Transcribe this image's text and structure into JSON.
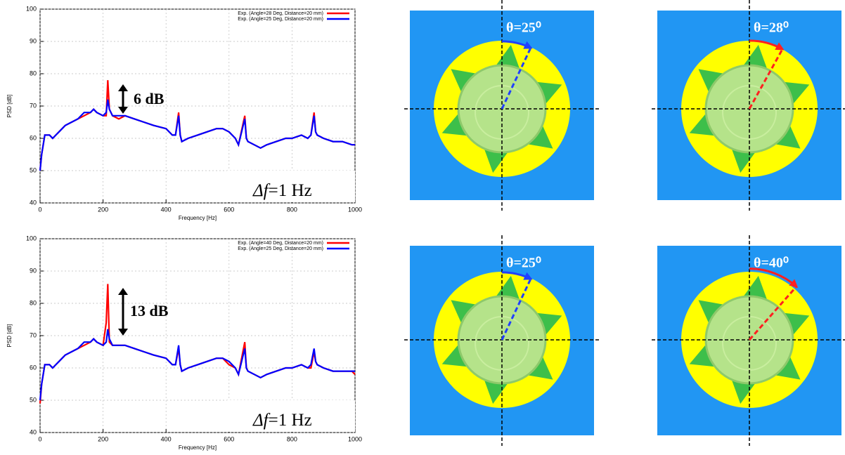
{
  "chart_data": [
    {
      "type": "line",
      "xlabel": "Frequency [Hz]",
      "ylabel": "PSD [dB]",
      "x": [
        0,
        5,
        10,
        15,
        30,
        40,
        50,
        60,
        80,
        100,
        120,
        140,
        160,
        170,
        180,
        200,
        210,
        215,
        220,
        230,
        250,
        270,
        300,
        330,
        360,
        400,
        420,
        430,
        440,
        445,
        450,
        470,
        500,
        530,
        560,
        580,
        600,
        620,
        630,
        650,
        655,
        660,
        680,
        700,
        720,
        750,
        780,
        800,
        830,
        850,
        860,
        870,
        875,
        880,
        900,
        930,
        960,
        990,
        1000
      ],
      "series": [
        {
          "name": "Exp. (Angle=28 Deg, Distance=20 mm)",
          "color": "#ff0000",
          "values": [
            50,
            55,
            58,
            61,
            61,
            60,
            61,
            62,
            64,
            65,
            66,
            67,
            68,
            69,
            68,
            67,
            67,
            78,
            69,
            67,
            66,
            67,
            66,
            65,
            64,
            63,
            61,
            61,
            68,
            61,
            59,
            60,
            61,
            62,
            63,
            63,
            62,
            60,
            58,
            67,
            60,
            59,
            58,
            57,
            58,
            59,
            60,
            60,
            61,
            60,
            61,
            68,
            62,
            61,
            60,
            59,
            59,
            58,
            58
          ]
        },
        {
          "name": "Exp. (Angle=25 Deg, Distance=20 mm)",
          "color": "#0000ff",
          "values": [
            50,
            55,
            58,
            61,
            61,
            60,
            61,
            62,
            64,
            65,
            66,
            68,
            68,
            69,
            68,
            67,
            68,
            72,
            69,
            67,
            67,
            67,
            66,
            65,
            64,
            63,
            61,
            61,
            67,
            61,
            59,
            60,
            61,
            62,
            63,
            63,
            62,
            60,
            58,
            66,
            60,
            59,
            58,
            57,
            58,
            59,
            60,
            60,
            61,
            60,
            61,
            67,
            62,
            61,
            60,
            59,
            59,
            58,
            58
          ]
        }
      ],
      "xlim": [
        0,
        1000
      ],
      "xticks": [
        0,
        200,
        400,
        600,
        800,
        1000
      ],
      "ylim": [
        40,
        100
      ],
      "yticks": [
        40,
        50,
        60,
        70,
        80,
        90,
        100
      ],
      "grid": true,
      "legend": "upper right",
      "annotations": [
        "6 dB",
        "Δf",
        "=1 Hz"
      ]
    },
    {
      "type": "line",
      "xlabel": "Frequency [Hz]",
      "ylabel": "PSD [dB]",
      "x": [
        0,
        5,
        10,
        15,
        30,
        40,
        50,
        60,
        80,
        100,
        120,
        140,
        160,
        170,
        180,
        200,
        210,
        215,
        220,
        230,
        250,
        270,
        300,
        330,
        360,
        400,
        420,
        430,
        440,
        445,
        450,
        470,
        500,
        530,
        560,
        580,
        600,
        620,
        630,
        650,
        655,
        660,
        680,
        700,
        720,
        750,
        780,
        800,
        830,
        850,
        860,
        870,
        875,
        880,
        900,
        930,
        960,
        990,
        1000
      ],
      "series": [
        {
          "name": "Exp. (Angle=40 Deg, Distance=20 mm)",
          "color": "#ff0000",
          "values": [
            49,
            55,
            58,
            61,
            61,
            60,
            61,
            62,
            64,
            65,
            66,
            67,
            68,
            69,
            68,
            67,
            74,
            86,
            68,
            67,
            67,
            67,
            66,
            65,
            64,
            63,
            61,
            61,
            66,
            61,
            59,
            60,
            61,
            62,
            63,
            63,
            61,
            60,
            58,
            68,
            60,
            59,
            58,
            57,
            58,
            59,
            60,
            60,
            61,
            60,
            60,
            65,
            62,
            61,
            60,
            59,
            59,
            59,
            58
          ]
        },
        {
          "name": "Exp. (Angle=25 Deg, Distance=20 mm)",
          "color": "#0000ff",
          "values": [
            50,
            55,
            58,
            61,
            61,
            60,
            61,
            62,
            64,
            65,
            66,
            68,
            68,
            69,
            68,
            67,
            68,
            72,
            69,
            67,
            67,
            67,
            66,
            65,
            64,
            63,
            61,
            61,
            67,
            61,
            59,
            60,
            61,
            62,
            63,
            63,
            62,
            60,
            58,
            66,
            60,
            59,
            58,
            57,
            58,
            59,
            60,
            60,
            61,
            60,
            61,
            66,
            62,
            61,
            60,
            59,
            59,
            59,
            59
          ]
        }
      ],
      "xlim": [
        0,
        1000
      ],
      "xticks": [
        0,
        200,
        400,
        600,
        800,
        1000
      ],
      "ylim": [
        40,
        100
      ],
      "yticks": [
        40,
        50,
        60,
        70,
        80,
        90,
        100
      ],
      "grid": true,
      "legend": "upper right",
      "annotations": [
        "13 dB",
        "Δf",
        "=1 Hz"
      ]
    }
  ],
  "diagrams": [
    {
      "label": "θ=25⁰"
    },
    {
      "label": "θ=28⁰"
    },
    {
      "label": "θ=25⁰"
    },
    {
      "label": "θ=40⁰"
    }
  ]
}
